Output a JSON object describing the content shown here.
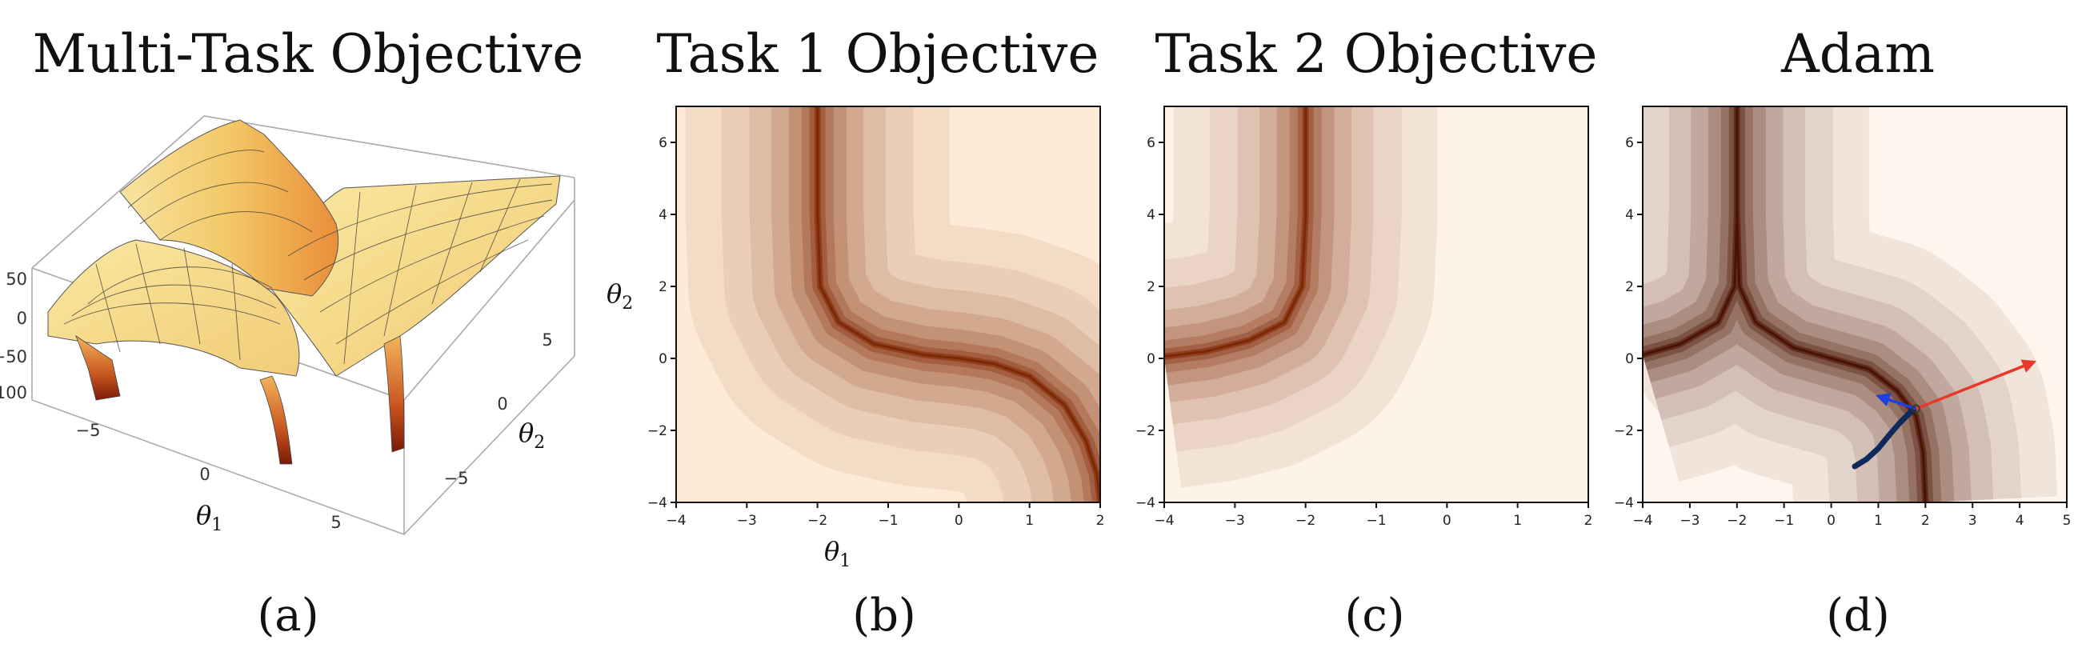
{
  "figure": {
    "panels": [
      {
        "id": "a",
        "title": "Multi-Task Objective",
        "caption": "(a)"
      },
      {
        "id": "b",
        "title": "Task 1 Objective",
        "caption": "(b)"
      },
      {
        "id": "c",
        "title": "Task 2 Objective",
        "caption": "(c)"
      },
      {
        "id": "d",
        "title": "Adam",
        "caption": "(d)"
      }
    ],
    "panel_a_axes": {
      "theta1_symbol": "θ",
      "theta1_sub": "1",
      "theta2_symbol": "θ",
      "theta2_sub": "2",
      "z_ticks": [
        "50",
        "0",
        "−50",
        "−100"
      ],
      "theta1_ticks": [
        "−5",
        "0",
        "5"
      ],
      "theta2_ticks": [
        "5",
        "0",
        "−5"
      ]
    },
    "panel_b_axes": {
      "xlabel_symbol": "θ",
      "xlabel_sub": "1",
      "ylabel_symbol": "θ",
      "ylabel_sub": "2"
    }
  },
  "chart_data": [
    {
      "type": "surface",
      "panel": "a",
      "title": "Multi-Task Objective",
      "xlabel": "θ1",
      "ylabel": "θ2",
      "xlim": [
        -7,
        7
      ],
      "ylim": [
        -7,
        7
      ],
      "zlim": [
        -100,
        50
      ],
      "colormap": "yellow-orange-red",
      "colors": {
        "high": "#fbeea8",
        "low": "#8a1f0a",
        "grid": "#333333"
      }
    },
    {
      "type": "heatmap",
      "panel": "b",
      "title": "Task 1 Objective",
      "xlabel": "θ1",
      "ylabel": "θ2",
      "xlim": [
        -4,
        2
      ],
      "ylim": [
        -4,
        7
      ],
      "xticks": [
        -4,
        -3,
        -2,
        -1,
        0,
        1,
        2
      ],
      "yticks": [
        -4,
        -2,
        0,
        2,
        4,
        6
      ],
      "valley_curve": [
        [
          -2.0,
          7.0
        ],
        [
          -2.0,
          4.0
        ],
        [
          -1.96,
          2.0
        ],
        [
          -1.7,
          1.0
        ],
        [
          -1.2,
          0.4
        ],
        [
          -0.5,
          0.1
        ],
        [
          0.0,
          0.0
        ],
        [
          0.5,
          -0.15
        ],
        [
          1.0,
          -0.5
        ],
        [
          1.5,
          -1.3
        ],
        [
          1.8,
          -2.3
        ],
        [
          1.95,
          -3.2
        ],
        [
          2.0,
          -4.0
        ]
      ],
      "colormap": "Oranges",
      "colors": {
        "low": "#fdebd7",
        "high": "#7f2704"
      }
    },
    {
      "type": "heatmap",
      "panel": "c",
      "title": "Task 2 Objective",
      "xlabel": "",
      "ylabel": "",
      "xlim": [
        -4,
        2
      ],
      "ylim": [
        -4,
        7
      ],
      "xticks": [
        -4,
        -3,
        -2,
        -1,
        0,
        1,
        2
      ],
      "yticks": [
        -4,
        -2,
        0,
        2,
        4,
        6
      ],
      "valley_curve": [
        [
          -2.0,
          7.0
        ],
        [
          -2.0,
          4.0
        ],
        [
          -2.05,
          2.0
        ],
        [
          -2.3,
          1.0
        ],
        [
          -2.8,
          0.5
        ],
        [
          -3.4,
          0.2
        ],
        [
          -4.0,
          0.05
        ]
      ],
      "colormap": "Oranges",
      "colors": {
        "low": "#fdf3e7",
        "high": "#7f2704"
      }
    },
    {
      "type": "heatmap",
      "panel": "d",
      "title": "Adam",
      "xlabel": "",
      "ylabel": "",
      "xlim": [
        -4,
        5
      ],
      "ylim": [
        -4,
        7
      ],
      "xticks": [
        -4,
        -3,
        -2,
        -1,
        0,
        1,
        2,
        3,
        4,
        5
      ],
      "yticks": [
        -4,
        -2,
        0,
        2,
        4,
        6
      ],
      "valley_curve": [
        [
          -2.0,
          7.0
        ],
        [
          -2.0,
          4.0
        ],
        [
          -1.95,
          2.0
        ],
        [
          -1.6,
          1.0
        ],
        [
          -0.8,
          0.3
        ],
        [
          0.0,
          0.0
        ],
        [
          0.8,
          -0.3
        ],
        [
          1.4,
          -0.9
        ],
        [
          1.8,
          -1.6
        ],
        [
          1.95,
          -2.6
        ],
        [
          2.0,
          -4.0
        ]
      ],
      "valley_curve_2": [
        [
          -2.0,
          4.0
        ],
        [
          -2.05,
          2.0
        ],
        [
          -2.4,
          1.0
        ],
        [
          -3.2,
          0.4
        ],
        [
          -4.0,
          0.1
        ]
      ],
      "trajectory": [
        [
          0.5,
          -3.0
        ],
        [
          0.75,
          -2.8
        ],
        [
          1.0,
          -2.5
        ],
        [
          1.25,
          -2.1
        ],
        [
          1.45,
          -1.8
        ],
        [
          1.6,
          -1.6
        ],
        [
          1.75,
          -1.4
        ]
      ],
      "arrows": [
        {
          "name": "task-1-gradient",
          "from": [
            1.8,
            -1.4
          ],
          "to": [
            4.3,
            -0.1
          ],
          "color": "#e8382a"
        },
        {
          "name": "task-2-gradient",
          "from": [
            1.8,
            -1.4
          ],
          "to": [
            1.0,
            -1.05
          ],
          "color": "#1f3fe0"
        }
      ],
      "colormap": "Oranges",
      "colors": {
        "low": "#fef6ee",
        "high": "#4a1202",
        "trajectory": "#0d2a5c"
      }
    }
  ]
}
